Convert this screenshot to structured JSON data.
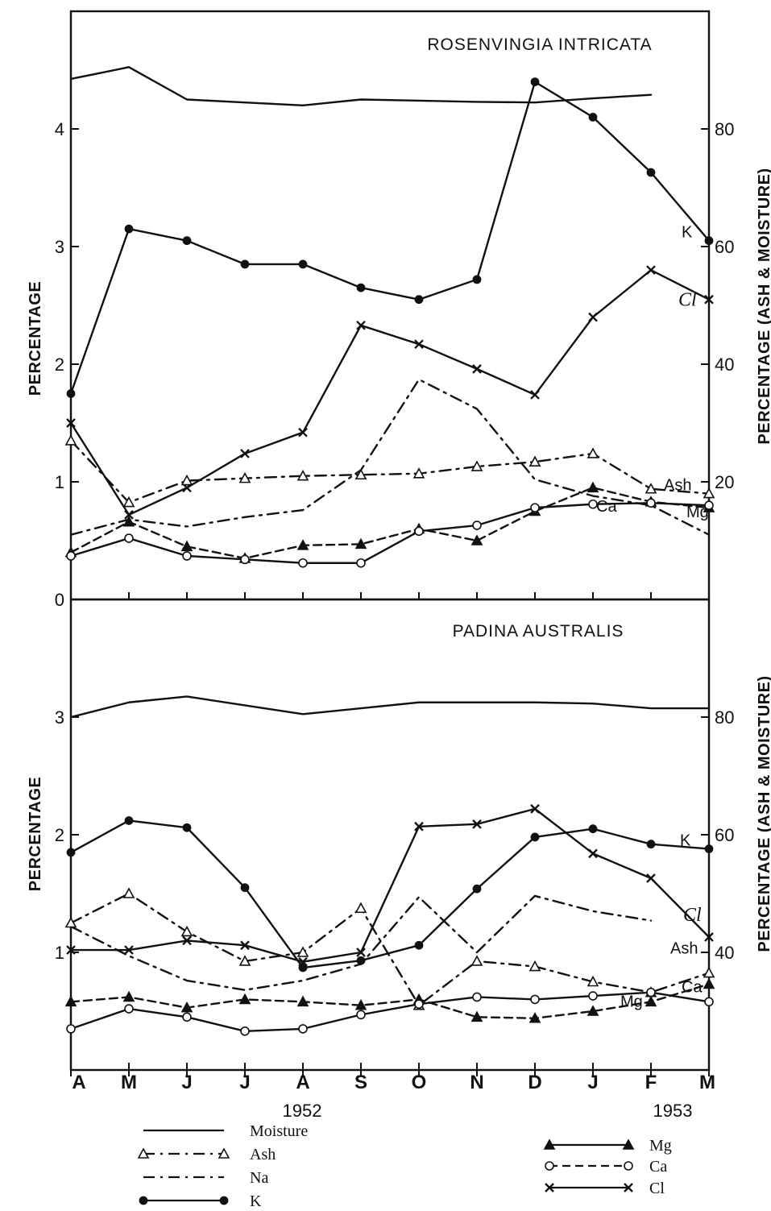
{
  "chart_data": [
    {
      "type": "line",
      "title": "ROSENVINGIA INTRICATA",
      "ylabel": "PERCENTAGE",
      "y2label": "PERCENTAGE (ASH & MOISTURE)",
      "categories": [
        "A",
        "M",
        "J",
        "J",
        "A",
        "S",
        "O",
        "N",
        "D",
        "J",
        "F",
        "M"
      ],
      "ylim": [
        0,
        5
      ],
      "y2lim": [
        0,
        100
      ],
      "yticks": [
        "0",
        "1",
        "2",
        "3",
        "4"
      ],
      "y2ticks": [
        "20",
        "40",
        "60",
        "80"
      ],
      "series": [
        {
          "name": "Moisture",
          "axis": "right",
          "label": "",
          "values": [
            88.5,
            90.5,
            85,
            84.5,
            84,
            85,
            84.8,
            84.6,
            84.5,
            85.2,
            85.8,
            null
          ]
        },
        {
          "name": "K",
          "axis": "left",
          "label": "K",
          "values": [
            1.75,
            3.15,
            3.05,
            2.85,
            2.85,
            2.65,
            2.55,
            2.72,
            4.4,
            4.1,
            3.63,
            3.05
          ]
        },
        {
          "name": "Cl",
          "axis": "left",
          "label": "Cl",
          "values": [
            1.5,
            0.72,
            0.95,
            1.24,
            1.42,
            2.33,
            2.17,
            1.96,
            1.74,
            2.4,
            2.8,
            2.55
          ]
        },
        {
          "name": "Na",
          "axis": "left",
          "label": "",
          "values": [
            0.55,
            0.68,
            0.62,
            0.7,
            0.76,
            1.1,
            1.87,
            1.62,
            1.02,
            0.88,
            0.8,
            0.55
          ]
        },
        {
          "name": "Ash",
          "axis": "right",
          "label": "Ash",
          "values": [
            27,
            16.5,
            20.2,
            20.6,
            21,
            21.2,
            21.4,
            22.6,
            23.4,
            24.8,
            18.8,
            18
          ]
        },
        {
          "name": "Mg",
          "axis": "left",
          "label": "Mg",
          "values": [
            0.4,
            0.66,
            0.45,
            0.35,
            0.46,
            0.47,
            0.6,
            0.5,
            0.75,
            0.95,
            0.83,
            0.78
          ]
        },
        {
          "name": "Ca",
          "axis": "left",
          "label": "Ca",
          "values": [
            0.37,
            0.52,
            0.37,
            0.34,
            0.31,
            0.31,
            0.58,
            0.63,
            0.78,
            0.81,
            0.82,
            0.8
          ]
        }
      ]
    },
    {
      "type": "line",
      "title": "PADINA AUSTRALIS",
      "ylabel": "PERCENTAGE",
      "y2label": "PERCENTAGE (ASH & MOISTURE)",
      "categories": [
        "A",
        "M",
        "J",
        "J",
        "A",
        "S",
        "O",
        "N",
        "D",
        "J",
        "F",
        "M"
      ],
      "ylim": [
        0,
        4
      ],
      "y2lim": [
        20,
        100
      ],
      "yticks": [
        "1",
        "2",
        "3"
      ],
      "y2ticks": [
        "40",
        "60",
        "80"
      ],
      "series": [
        {
          "name": "Moisture",
          "axis": "right",
          "label": "",
          "values": [
            80,
            82.5,
            83.5,
            82,
            80.5,
            81.5,
            82.5,
            82.5,
            82.5,
            82.3,
            81.5,
            81.5
          ]
        },
        {
          "name": "K",
          "axis": "left",
          "label": "K",
          "values": [
            1.85,
            2.12,
            2.06,
            1.55,
            0.87,
            0.93,
            1.06,
            1.54,
            1.98,
            2.05,
            1.92,
            1.88
          ]
        },
        {
          "name": "Cl",
          "axis": "left",
          "label": "Cl",
          "values": [
            1.02,
            1.02,
            1.1,
            1.06,
            0.92,
            1.0,
            2.07,
            2.09,
            2.22,
            1.84,
            1.63,
            1.13
          ]
        },
        {
          "name": "Na",
          "axis": "left",
          "label": "",
          "values": [
            1.22,
            0.97,
            0.76,
            0.68,
            0.76,
            0.9,
            1.47,
            1.0,
            1.48,
            1.35,
            1.27,
            null
          ]
        },
        {
          "name": "Ash",
          "axis": "right",
          "label": "Ash",
          "values": [
            45,
            50,
            43.5,
            38.5,
            40,
            47.5,
            31,
            38.5,
            37.6,
            35,
            33.2,
            36.5
          ]
        },
        {
          "name": "Mg",
          "axis": "left",
          "label": "Mg",
          "values": [
            0.58,
            0.62,
            0.53,
            0.6,
            0.58,
            0.55,
            0.6,
            0.45,
            0.44,
            0.5,
            0.58,
            0.73
          ]
        },
        {
          "name": "Ca",
          "axis": "left",
          "label": "Ca",
          "values": [
            0.35,
            0.52,
            0.45,
            0.33,
            0.35,
            0.47,
            0.56,
            0.62,
            0.6,
            0.63,
            0.66,
            0.58
          ]
        }
      ]
    }
  ],
  "x_axis": {
    "ticks": [
      "A",
      "M",
      "J",
      "J",
      "A",
      "S",
      "O",
      "N",
      "D",
      "J",
      "F",
      "M"
    ],
    "year_1952": "1952",
    "year_1953": "1953"
  },
  "legend": {
    "left": [
      {
        "name": "Moisture",
        "style": "solid"
      },
      {
        "name": "Ash",
        "style": "dashdot",
        "marker": "open-triangle"
      },
      {
        "name": "Na",
        "style": "dashdot"
      },
      {
        "name": "K",
        "style": "solid",
        "marker": "filled-circle"
      }
    ],
    "right": [
      {
        "name": "Mg",
        "style": "solid",
        "marker": "filled-triangle"
      },
      {
        "name": "Ca",
        "style": "dashed",
        "marker": "open-circle"
      },
      {
        "name": "Cl",
        "style": "solid",
        "marker": "cross"
      }
    ]
  },
  "colors": {
    "ink": "#111111",
    "background": "#ffffff"
  }
}
